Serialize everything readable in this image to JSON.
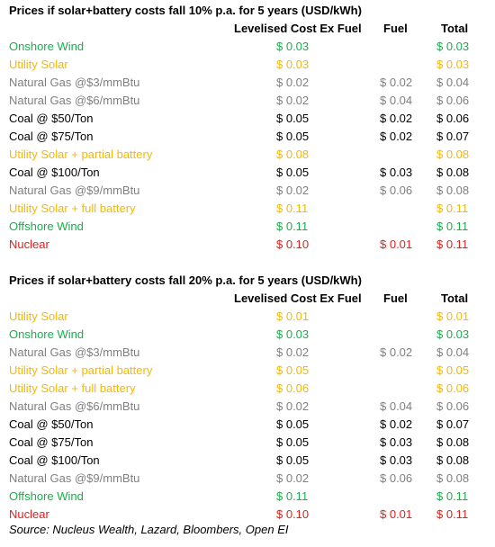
{
  "colors": {
    "green": "#16b04a",
    "yellow": "#f5b800",
    "gray": "#7f7f7f",
    "black": "#000000",
    "red": "#e0201b"
  },
  "sections": [
    {
      "title": "Prices if solar+battery costs fall 10% p.a. for 5 years (USD/kWh)",
      "headers": {
        "lcoe": "Levelised Cost Ex Fuel",
        "fuel": "Fuel",
        "total": "Total"
      },
      "rows": [
        {
          "name": "Onshore Wind",
          "lcoe": "$ 0.03",
          "fuel": "",
          "total": "$ 0.03",
          "color": "green"
        },
        {
          "name": "Utility Solar",
          "lcoe": "$ 0.03",
          "fuel": "",
          "total": "$ 0.03",
          "color": "yellow"
        },
        {
          "name": "Natural Gas @$3/mmBtu",
          "lcoe": "$ 0.02",
          "fuel": "$ 0.02",
          "total": "$ 0.04",
          "color": "gray"
        },
        {
          "name": "Natural Gas @$6/mmBtu",
          "lcoe": "$ 0.02",
          "fuel": "$ 0.04",
          "total": "$ 0.06",
          "color": "gray"
        },
        {
          "name": "Coal @ $50/Ton",
          "lcoe": "$ 0.05",
          "fuel": "$ 0.02",
          "total": "$ 0.06",
          "color": "black"
        },
        {
          "name": "Coal @ $75/Ton",
          "lcoe": "$ 0.05",
          "fuel": "$ 0.02",
          "total": "$ 0.07",
          "color": "black"
        },
        {
          "name": "Utility Solar + partial battery",
          "lcoe": "$ 0.08",
          "fuel": "",
          "total": "$ 0.08",
          "color": "yellow"
        },
        {
          "name": "Coal @ $100/Ton",
          "lcoe": "$ 0.05",
          "fuel": "$ 0.03",
          "total": "$ 0.08",
          "color": "black"
        },
        {
          "name": "Natural Gas @$9/mmBtu",
          "lcoe": "$ 0.02",
          "fuel": "$ 0.06",
          "total": "$ 0.08",
          "color": "gray"
        },
        {
          "name": "Utility Solar + full battery",
          "lcoe": "$ 0.11",
          "fuel": "",
          "total": "$ 0.11",
          "color": "yellow"
        },
        {
          "name": "Offshore Wind",
          "lcoe": "$ 0.11",
          "fuel": "",
          "total": "$ 0.11",
          "color": "green"
        },
        {
          "name": "Nuclear",
          "lcoe": "$ 0.10",
          "fuel": "$ 0.01",
          "total": "$ 0.11",
          "color": "red"
        }
      ]
    },
    {
      "title": "Prices if solar+battery costs fall 20% p.a. for 5 years (USD/kWh)",
      "headers": {
        "lcoe": "Levelised Cost Ex Fuel",
        "fuel": "Fuel",
        "total": "Total"
      },
      "rows": [
        {
          "name": "Utility Solar",
          "lcoe": "$ 0.01",
          "fuel": "",
          "total": "$ 0.01",
          "color": "yellow"
        },
        {
          "name": "Onshore Wind",
          "lcoe": "$ 0.03",
          "fuel": "",
          "total": "$ 0.03",
          "color": "green"
        },
        {
          "name": "Natural Gas @$3/mmBtu",
          "lcoe": "$ 0.02",
          "fuel": "$ 0.02",
          "total": "$ 0.04",
          "color": "gray"
        },
        {
          "name": "Utility Solar + partial battery",
          "lcoe": "$ 0.05",
          "fuel": "",
          "total": "$ 0.05",
          "color": "yellow"
        },
        {
          "name": "Utility Solar + full battery",
          "lcoe": "$ 0.06",
          "fuel": "",
          "total": "$ 0.06",
          "color": "yellow"
        },
        {
          "name": "Natural Gas @$6/mmBtu",
          "lcoe": "$ 0.02",
          "fuel": "$ 0.04",
          "total": "$ 0.06",
          "color": "gray"
        },
        {
          "name": "Coal @ $50/Ton",
          "lcoe": "$ 0.05",
          "fuel": "$ 0.02",
          "total": "$ 0.07",
          "color": "black"
        },
        {
          "name": "Coal @ $75/Ton",
          "lcoe": "$ 0.05",
          "fuel": "$ 0.03",
          "total": "$ 0.08",
          "color": "black"
        },
        {
          "name": "Coal @ $100/Ton",
          "lcoe": "$ 0.05",
          "fuel": "$ 0.03",
          "total": "$ 0.08",
          "color": "black"
        },
        {
          "name": "Natural Gas @$9/mmBtu",
          "lcoe": "$ 0.02",
          "fuel": "$ 0.06",
          "total": "$ 0.08",
          "color": "gray"
        },
        {
          "name": "Offshore Wind",
          "lcoe": "$ 0.11",
          "fuel": "",
          "total": "$ 0.11",
          "color": "green"
        },
        {
          "name": "Nuclear",
          "lcoe": "$ 0.10",
          "fuel": "$ 0.01",
          "total": "$ 0.11",
          "color": "red"
        }
      ]
    }
  ],
  "source": "Source: Nucleus Wealth, Lazard, Bloombers, Open EI"
}
